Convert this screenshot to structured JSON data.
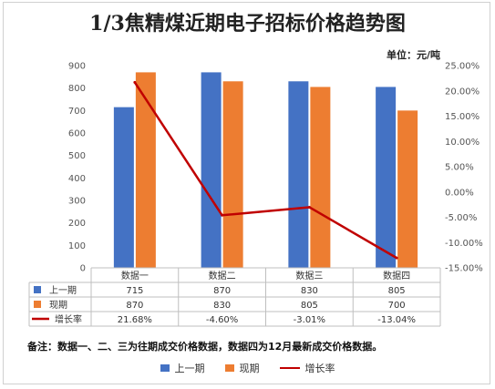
{
  "unit_label": "单位：元/吨",
  "note": "备注：数据一、二、三为往期成交价格数据，数据四为12月最新成交价格数据。",
  "chart_data": {
    "type": "bar",
    "title": "1/3焦精煤近期电子招标价格趋势图",
    "categories": [
      "数据一",
      "数据二",
      "数据三",
      "数据四"
    ],
    "series": [
      {
        "name": "上一期",
        "type": "bar",
        "axis": "left",
        "color": "#4472C4",
        "values": [
          715,
          870,
          830,
          805
        ],
        "labels": [
          "715",
          "870",
          "830",
          "805"
        ]
      },
      {
        "name": "现期",
        "type": "bar",
        "axis": "left",
        "color": "#ED7D31",
        "values": [
          870,
          830,
          805,
          700
        ],
        "labels": [
          "870",
          "830",
          "805",
          "700"
        ]
      },
      {
        "name": "增长率",
        "type": "line",
        "axis": "right",
        "color": "#C00000",
        "values": [
          21.68,
          -4.6,
          -3.01,
          -13.04
        ],
        "labels": [
          "21.68%",
          "-4.60%",
          "-3.01%",
          "-13.04%"
        ]
      }
    ],
    "y_left": {
      "min": 0,
      "max": 900,
      "step": 100
    },
    "y_right": {
      "min": -15,
      "max": 25,
      "step": 5,
      "format": "percent"
    },
    "data_table": true,
    "legend_position": "bottom",
    "grid": false
  }
}
